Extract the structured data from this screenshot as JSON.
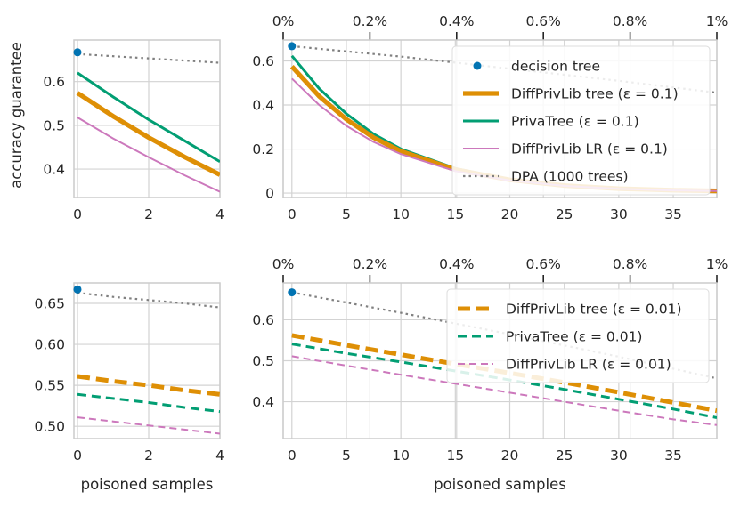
{
  "chart_data": [
    {
      "id": "top-left",
      "type": "line",
      "xlim": [
        -0.1,
        4
      ],
      "ylim": [
        0.335,
        0.695
      ],
      "xticks": [
        0,
        2,
        4
      ],
      "yticks": [
        0.4,
        0.5,
        0.6
      ],
      "ylabel": "accuracy guarantee",
      "xlabel": "",
      "marker": {
        "name": "decision tree",
        "x": 0,
        "y": 0.667
      },
      "series": [
        {
          "name": "DPA (1000 trees)",
          "style": "dotted",
          "color": "#808080",
          "x": [
            0,
            1,
            2,
            3,
            4
          ],
          "y": [
            0.663,
            0.658,
            0.653,
            0.648,
            0.643
          ]
        },
        {
          "name": "PrivaTree (ε = 0.1)",
          "style": "solid",
          "color": "#029e73",
          "x": [
            0,
            1,
            2,
            3,
            4
          ],
          "y": [
            0.62,
            0.565,
            0.513,
            0.465,
            0.417
          ]
        },
        {
          "name": "DiffPrivLib tree (ε = 0.1)",
          "style": "solid-thick",
          "color": "#de8f05",
          "x": [
            0,
            1,
            2,
            3,
            4
          ],
          "y": [
            0.574,
            0.521,
            0.472,
            0.428,
            0.387
          ]
        },
        {
          "name": "DiffPrivLib LR (ε = 0.1)",
          "style": "solid-thin",
          "color": "#cc78bc",
          "x": [
            0,
            1,
            2,
            3,
            4
          ],
          "y": [
            0.518,
            0.47,
            0.427,
            0.386,
            0.348
          ]
        }
      ]
    },
    {
      "id": "top-right",
      "type": "line",
      "xlim": [
        -0.8,
        39
      ],
      "ylim": [
        -0.02,
        0.695
      ],
      "xticks": [
        0,
        5,
        10,
        15,
        20,
        25,
        30,
        35
      ],
      "yticks": [
        0.0,
        0.2,
        0.4,
        0.6
      ],
      "top_axis": {
        "ticks": [
          "0%",
          "0.2%",
          "0.4%",
          "0.6%",
          "0.8%",
          "1%"
        ]
      },
      "xlabel": "",
      "legend": {
        "position": "upper right",
        "entries": [
          "decision tree",
          "DiffPrivLib tree (ε = 0.1)",
          "PrivaTree (ε = 0.1)",
          "DiffPrivLib LR (ε = 0.1)",
          "DPA (1000 trees)"
        ]
      },
      "marker": {
        "name": "decision tree",
        "x": 0,
        "y": 0.667
      },
      "series": [
        {
          "name": "DPA (1000 trees)",
          "style": "dotted",
          "color": "#808080",
          "x": [
            0,
            10,
            20,
            30,
            39
          ],
          "y": [
            0.667,
            0.62,
            0.565,
            0.51,
            0.456
          ]
        },
        {
          "name": "PrivaTree (ε = 0.1)",
          "style": "solid",
          "color": "#029e73",
          "x": [
            0,
            2.5,
            5,
            7.5,
            10,
            15,
            20,
            25,
            30,
            35,
            39
          ],
          "y": [
            0.623,
            0.475,
            0.36,
            0.268,
            0.2,
            0.112,
            0.062,
            0.035,
            0.02,
            0.013,
            0.01
          ]
        },
        {
          "name": "DiffPrivLib tree (ε = 0.1)",
          "style": "solid-thick",
          "color": "#de8f05",
          "x": [
            0,
            2.5,
            5,
            7.5,
            10,
            15,
            20,
            25,
            30,
            35,
            39
          ],
          "y": [
            0.575,
            0.44,
            0.335,
            0.252,
            0.19,
            0.107,
            0.06,
            0.034,
            0.02,
            0.013,
            0.01
          ]
        },
        {
          "name": "DiffPrivLib LR (ε = 0.1)",
          "style": "solid-thin",
          "color": "#cc78bc",
          "x": [
            0,
            2.5,
            5,
            7.5,
            10,
            15,
            20,
            25,
            30,
            35,
            39
          ],
          "y": [
            0.52,
            0.4,
            0.305,
            0.232,
            0.177,
            0.1,
            0.057,
            0.033,
            0.019,
            0.012,
            0.009
          ]
        }
      ]
    },
    {
      "id": "bottom-left",
      "type": "line",
      "xlim": [
        -0.1,
        4
      ],
      "ylim": [
        0.485,
        0.675
      ],
      "xticks": [
        0,
        2,
        4
      ],
      "yticks": [
        0.5,
        0.55,
        0.6,
        0.65
      ],
      "ytick_labels": [
        "0.50",
        "0.55",
        "0.60",
        "0.65"
      ],
      "xlabel": "poisoned samples",
      "marker": {
        "name": "decision tree",
        "x": 0,
        "y": 0.667
      },
      "series": [
        {
          "name": "DPA (1000 trees)",
          "style": "dotted",
          "color": "#808080",
          "x": [
            0,
            1,
            2,
            3,
            4
          ],
          "y": [
            0.663,
            0.658,
            0.654,
            0.65,
            0.645
          ]
        },
        {
          "name": "DiffPrivLib tree (ε = 0.01)",
          "style": "dashed-thick",
          "color": "#de8f05",
          "x": [
            0,
            1,
            2,
            3,
            4
          ],
          "y": [
            0.561,
            0.555,
            0.55,
            0.544,
            0.539
          ]
        },
        {
          "name": "PrivaTree (ε = 0.01)",
          "style": "dashed",
          "color": "#029e73",
          "x": [
            0,
            1,
            2,
            3,
            4
          ],
          "y": [
            0.539,
            0.534,
            0.529,
            0.523,
            0.518
          ]
        },
        {
          "name": "DiffPrivLib LR (ε = 0.01)",
          "style": "dashed-thin",
          "color": "#cc78bc",
          "x": [
            0,
            1,
            2,
            3,
            4
          ],
          "y": [
            0.511,
            0.506,
            0.501,
            0.496,
            0.491
          ]
        }
      ]
    },
    {
      "id": "bottom-right",
      "type": "line",
      "xlim": [
        -0.8,
        39
      ],
      "ylim": [
        0.31,
        0.69
      ],
      "xticks": [
        0,
        5,
        10,
        15,
        20,
        25,
        30,
        35
      ],
      "yticks": [
        0.4,
        0.5,
        0.6
      ],
      "top_axis": {
        "ticks": [
          "0%",
          "0.2%",
          "0.4%",
          "0.6%",
          "0.8%",
          "1%"
        ]
      },
      "xlabel": "poisoned samples",
      "legend": {
        "position": "upper right",
        "entries": [
          "DiffPrivLib tree (ε = 0.01)",
          "PrivaTree (ε = 0.01)",
          "DiffPrivLib LR (ε = 0.01)"
        ]
      },
      "marker": {
        "name": "decision tree",
        "x": 0,
        "y": 0.667
      },
      "series": [
        {
          "name": "DPA (1000 trees)",
          "style": "dotted",
          "color": "#808080",
          "x": [
            0,
            10,
            20,
            30,
            39
          ],
          "y": [
            0.667,
            0.617,
            0.565,
            0.51,
            0.457
          ]
        },
        {
          "name": "DiffPrivLib tree (ε = 0.01)",
          "style": "dashed-thick",
          "color": "#de8f05",
          "x": [
            0,
            5,
            10,
            15,
            20,
            25,
            30,
            35,
            39
          ],
          "y": [
            0.562,
            0.538,
            0.515,
            0.492,
            0.47,
            0.447,
            0.423,
            0.398,
            0.378
          ]
        },
        {
          "name": "PrivaTree (ε = 0.01)",
          "style": "dashed",
          "color": "#029e73",
          "x": [
            0,
            5,
            10,
            15,
            20,
            25,
            30,
            35,
            39
          ],
          "y": [
            0.541,
            0.518,
            0.497,
            0.475,
            0.453,
            0.43,
            0.406,
            0.382,
            0.361
          ]
        },
        {
          "name": "DiffPrivLib LR (ε = 0.01)",
          "style": "dashed-thin",
          "color": "#cc78bc",
          "x": [
            0,
            5,
            10,
            15,
            20,
            25,
            30,
            35,
            39
          ],
          "y": [
            0.511,
            0.488,
            0.466,
            0.444,
            0.422,
            0.4,
            0.378,
            0.357,
            0.343
          ]
        }
      ]
    }
  ]
}
